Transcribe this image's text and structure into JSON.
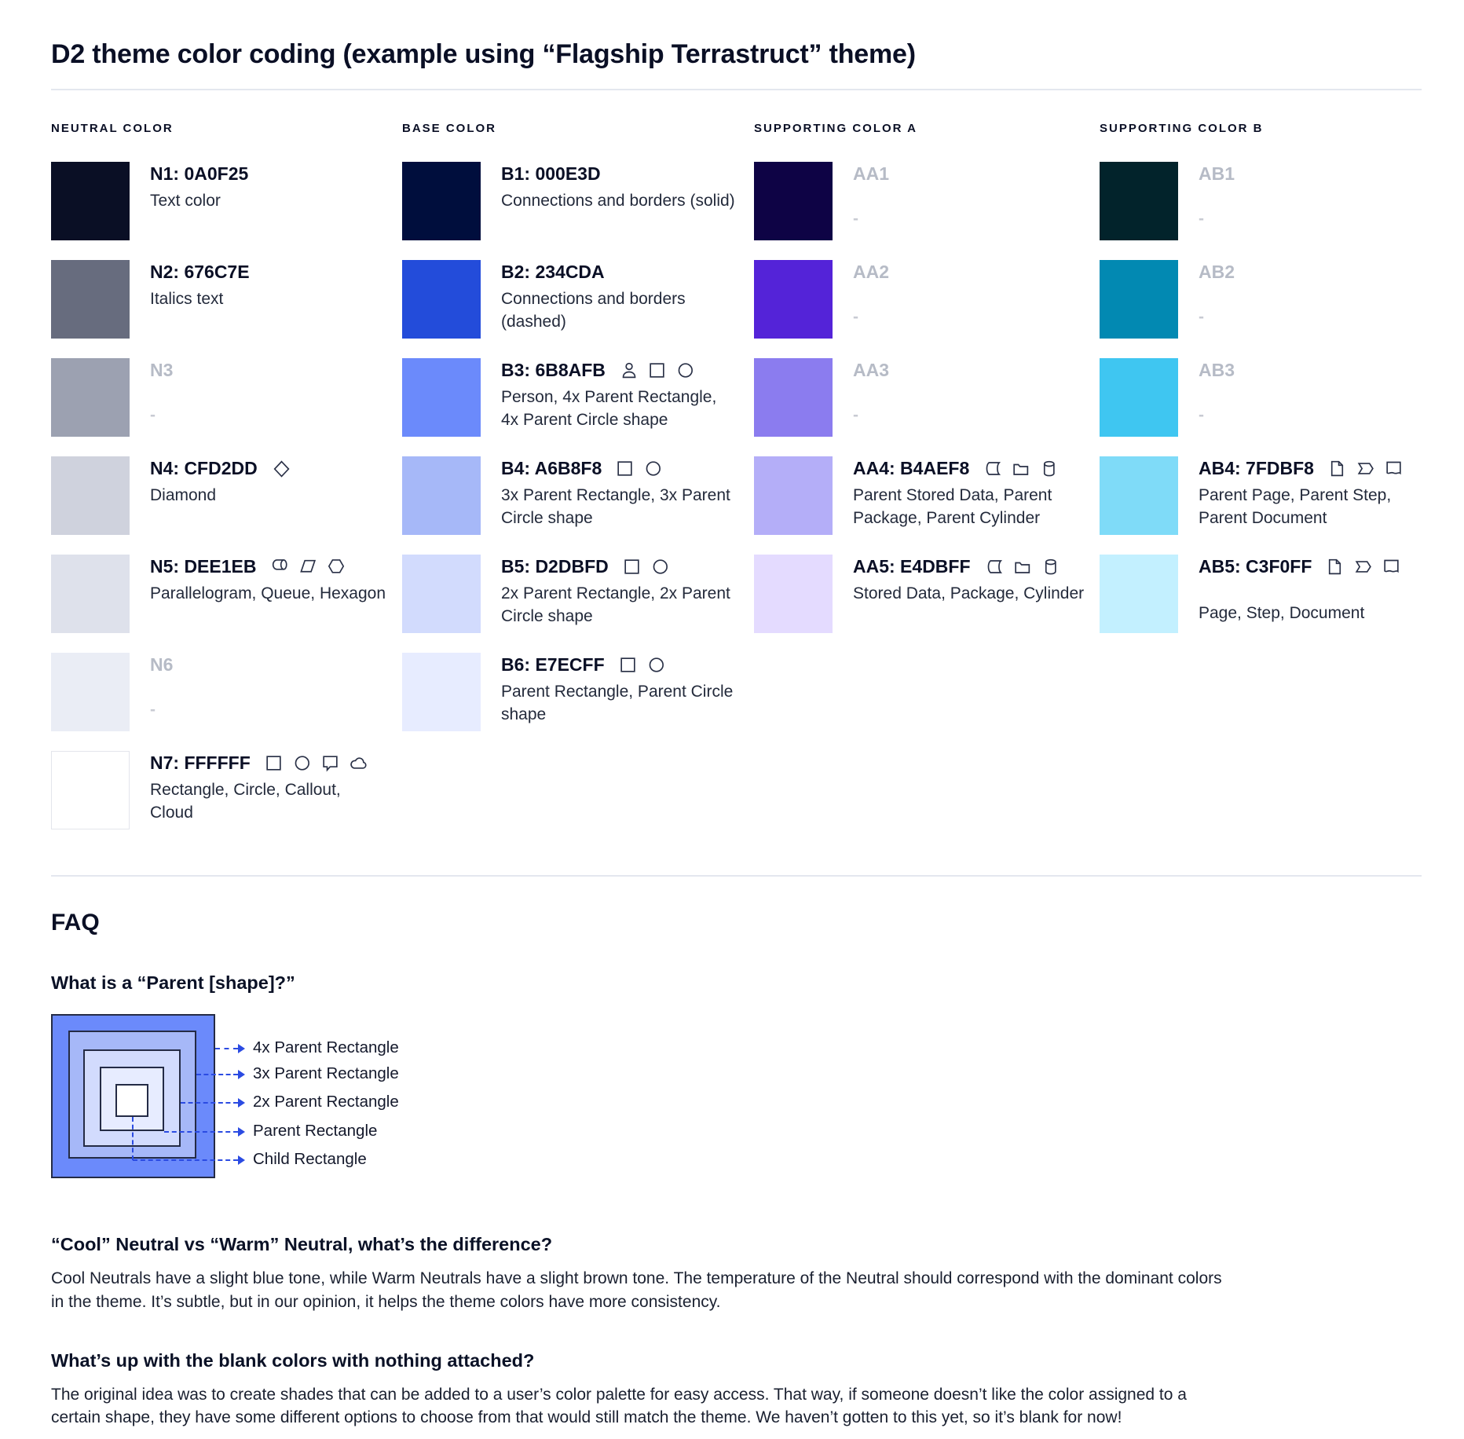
{
  "page": {
    "title": "D2 theme color coding (example using “Flagship Terrastruct” theme)"
  },
  "palette_colors": {
    "text": "#0A0F25",
    "muted_label": "#B6BBC6",
    "arrow_blue": "#2B4BE2",
    "divider": "#E4E7EF"
  },
  "columns": [
    {
      "header": "NEUTRAL COLOR",
      "rows": [
        {
          "label": "N1: 0A0F25",
          "color": "#0A0F25",
          "desc": "Text color",
          "icons": []
        },
        {
          "label": "N2: 676C7E",
          "color": "#676C7E",
          "desc": "Italics text",
          "icons": []
        },
        {
          "label": "N3",
          "color": "#9CA1B1",
          "desc": "-",
          "muted": true,
          "icons": []
        },
        {
          "label": "N4: CFD2DD",
          "color": "#CFD2DD",
          "desc": "Diamond",
          "icons": [
            "diamond"
          ]
        },
        {
          "label": "N5: DEE1EB",
          "color": "#DEE1EB",
          "desc": "Parallelogram, Queue, Hexagon",
          "icons": [
            "queue",
            "parallelogram",
            "hexagon"
          ]
        },
        {
          "label": "N6",
          "color": "#EAEDF5",
          "desc": "-",
          "muted": true,
          "icons": []
        },
        {
          "label": "N7: FFFFFF",
          "color": "#FFFFFF",
          "border": true,
          "desc": "Rectangle, Circle, Callout, Cloud",
          "icons": [
            "rectangle",
            "circle",
            "callout",
            "cloud"
          ]
        }
      ]
    },
    {
      "header": "BASE COLOR",
      "rows": [
        {
          "label": "B1: 000E3D",
          "color": "#000E3D",
          "desc": "Connections and borders (solid)",
          "icons": []
        },
        {
          "label": "B2: 234CDA",
          "color": "#234CDA",
          "desc": "Connections and borders (dashed)",
          "icons": []
        },
        {
          "label": "B3: 6B8AFB",
          "color": "#6B8AFB",
          "desc": "Person, 4x Parent Rectangle, 4x Parent Circle shape",
          "icons": [
            "person",
            "rectangle",
            "circle"
          ]
        },
        {
          "label": "B4: A6B8F8",
          "color": "#A6B8F8",
          "desc": "3x Parent Rectangle, 3x Parent Circle shape",
          "icons": [
            "rectangle",
            "circle"
          ]
        },
        {
          "label": "B5: D2DBFD",
          "color": "#D2DBFD",
          "desc": "2x Parent Rectangle, 2x Parent Circle shape",
          "icons": [
            "rectangle",
            "circle"
          ]
        },
        {
          "label": "B6: E7ECFF",
          "color": "#E7ECFF",
          "desc": "Parent Rectangle, Parent Circle shape",
          "icons": [
            "rectangle",
            "circle"
          ]
        }
      ]
    },
    {
      "header": "SUPPORTING COLOR A",
      "rows": [
        {
          "label": "AA1",
          "color": "#0E0345",
          "desc": "-",
          "muted": true,
          "icons": []
        },
        {
          "label": "AA2",
          "color": "#5423D8",
          "desc": "-",
          "muted": true,
          "icons": []
        },
        {
          "label": "AA3",
          "color": "#8B7CEF",
          "desc": "-",
          "muted": true,
          "icons": []
        },
        {
          "label": "AA4: B4AEF8",
          "color": "#B4AEF8",
          "desc": "Parent Stored Data, Parent Package,  Parent Cylinder",
          "icons": [
            "stored-data",
            "package",
            "cylinder"
          ]
        },
        {
          "label": "AA5: E4DBFF",
          "color": "#E4DBFF",
          "desc": "Stored Data, Package, Cylinder",
          "icons": [
            "stored-data",
            "package",
            "cylinder"
          ]
        }
      ]
    },
    {
      "header": "SUPPORTING COLOR B",
      "rows": [
        {
          "label": "AB1",
          "color": "#02232B",
          "desc": "-",
          "muted": true,
          "icons": []
        },
        {
          "label": "AB2",
          "color": "#0289B2",
          "desc": "-",
          "muted": true,
          "icons": []
        },
        {
          "label": "AB3",
          "color": "#3FC6F1",
          "desc": "-",
          "muted": true,
          "icons": []
        },
        {
          "label": "AB4: 7FDBF8",
          "color": "#7FDBF8",
          "desc": "Parent Page, Parent Step, Parent Document",
          "icons": [
            "page",
            "step",
            "document"
          ]
        },
        {
          "label": "AB5: C3F0FF",
          "color": "#C3F0FF",
          "desc": "Page, Step, Document",
          "desc_gap": true,
          "icons": [
            "page",
            "step",
            "document"
          ]
        }
      ]
    }
  ],
  "faq": {
    "heading": "FAQ",
    "q1": "What is a “Parent [shape]?”",
    "diagram": {
      "squares": [
        {
          "label": "4x Parent Rectangle",
          "color": "#6B8AFB"
        },
        {
          "label": "3x Parent Rectangle",
          "color": "#A6B8F8"
        },
        {
          "label": "2x Parent Rectangle",
          "color": "#D2DBFD"
        },
        {
          "label": "Parent Rectangle",
          "color": "#E7ECFF"
        },
        {
          "label": "Child Rectangle",
          "color": "#FFFFFF"
        }
      ]
    },
    "q2": "“Cool” Neutral vs “Warm” Neutral, what’s the difference?",
    "a2": "Cool Neutrals have a slight blue tone, while Warm Neutrals have a slight brown tone. The temperature of the Neutral should correspond with the dominant colors in the theme. It’s subtle, but in our opinion, it helps the theme colors have more consistency.",
    "q3": "What’s up with the blank colors with nothing attached?",
    "a3": "The original idea was to create shades that can be added to a user’s color palette for easy access. That way, if someone doesn’t like the color assigned to a certain shape, they have some different options to choose from that would still match the theme. We haven’t gotten to this yet, so it’s blank for now!"
  }
}
